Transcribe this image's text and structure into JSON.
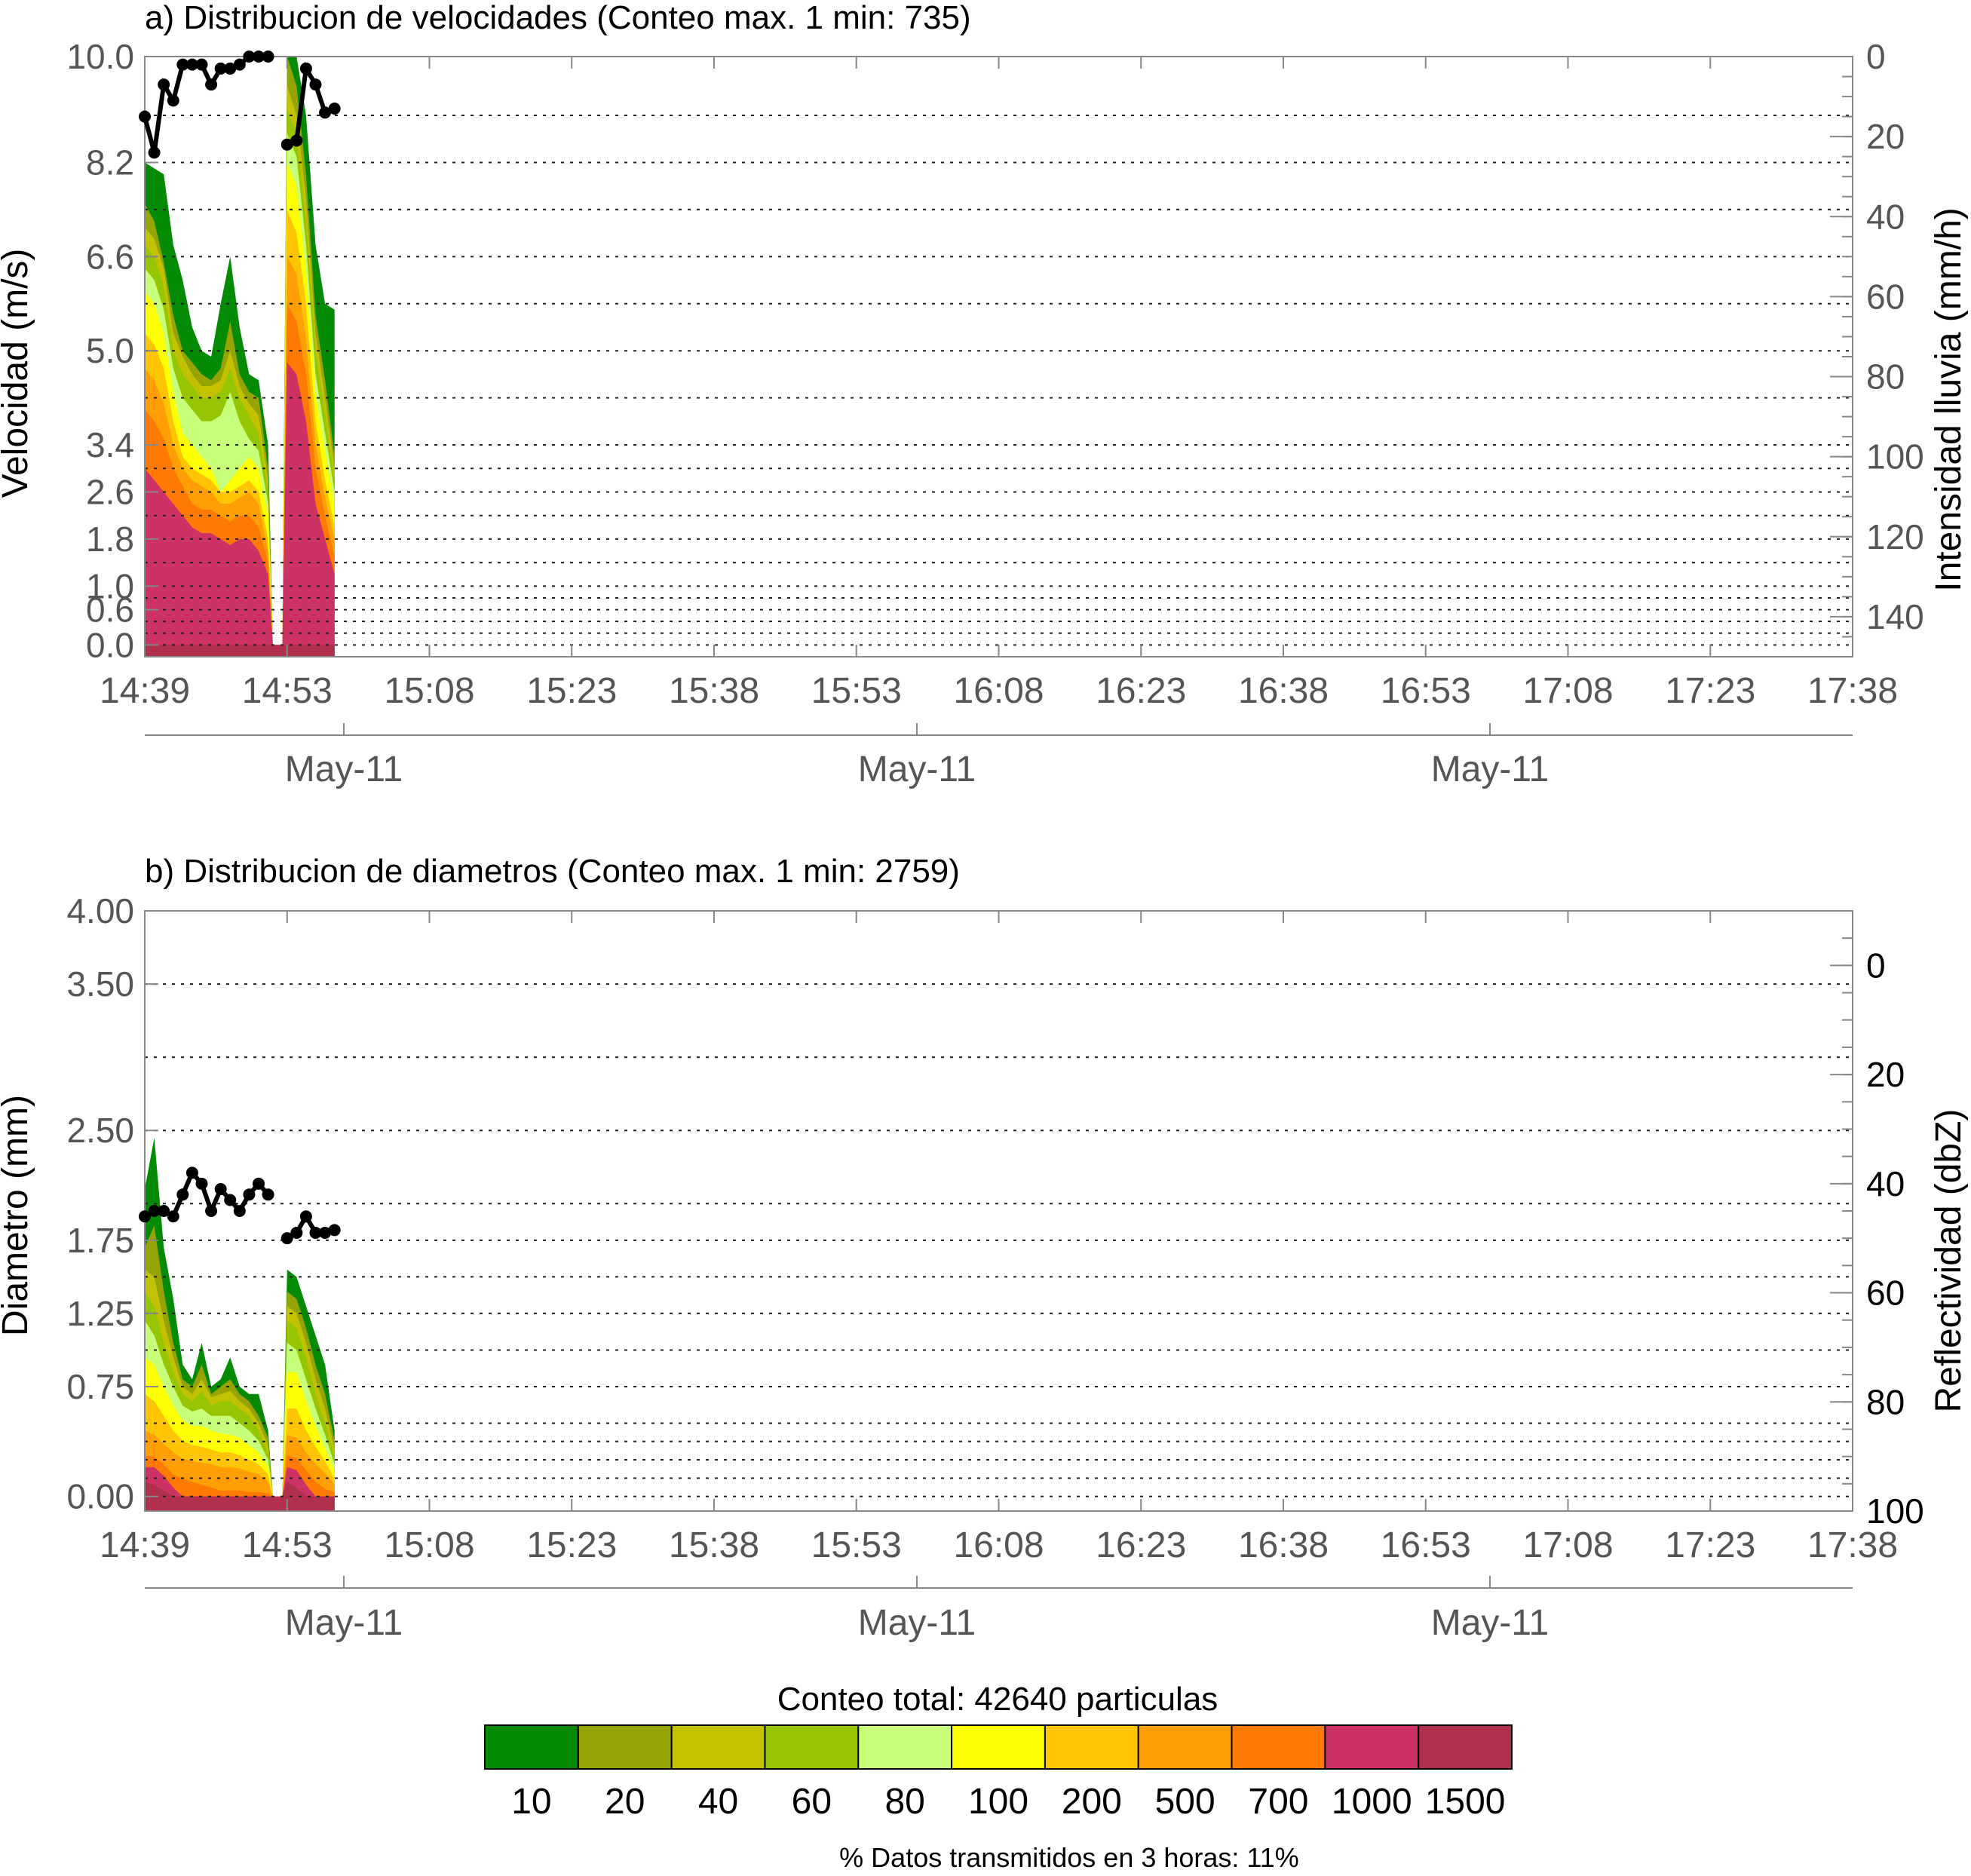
{
  "colors": {
    "axis_text": "#555555",
    "frame": "#888888",
    "grid": "#222222",
    "series": "#000000",
    "bins": [
      "#058a05",
      "#95a305",
      "#c2c203",
      "#96c603",
      "#c8ff7a",
      "#ffff03",
      "#ffc403",
      "#ff9f05",
      "#ff7a05",
      "#cd3264",
      "#b0304b"
    ]
  },
  "chart_data": [
    {
      "type": "area",
      "title": "a) Distribucion de velocidades (Conteo max. 1 min: 735)",
      "ylabel": "Velocidad (m/s)",
      "y2label": "Intensidad lluvia (mm/h)",
      "xticks": [
        "14:39",
        "14:53",
        "15:08",
        "15:23",
        "15:38",
        "15:53",
        "16:08",
        "16:23",
        "16:38",
        "16:53",
        "17:08",
        "17:23",
        "17:38"
      ],
      "date_labels": [
        "May-11",
        "May-11",
        "May-11"
      ],
      "xlim": [
        0,
        180
      ],
      "yticks": [
        "0.0",
        "0.6",
        "1.0",
        "1.8",
        "2.6",
        "3.4",
        "5.0",
        "6.6",
        "8.2",
        "10.0"
      ],
      "ytick_values": [
        0.0,
        0.6,
        1.0,
        1.8,
        2.6,
        3.4,
        5.0,
        6.6,
        8.2,
        10.0
      ],
      "gridlines": [
        0.0,
        0.2,
        0.4,
        0.6,
        0.8,
        1.0,
        1.4,
        1.8,
        2.2,
        2.6,
        3.0,
        3.4,
        4.2,
        5.0,
        5.8,
        6.6,
        7.4,
        8.2,
        9.0
      ],
      "ylim": [
        -0.2,
        10.0
      ],
      "y2ticks": [
        "0",
        "20",
        "40",
        "60",
        "80",
        "100",
        "120",
        "140"
      ],
      "y2tick_values": [
        0,
        20,
        40,
        60,
        80,
        100,
        120,
        140
      ],
      "y2lim": [
        0,
        150
      ],
      "y2_inverted": true,
      "series": [
        {
          "name": "",
          "kind": "rain_intensity",
          "x": [
            0,
            1,
            2,
            3,
            4,
            5,
            6,
            7,
            8,
            9,
            10,
            11,
            12,
            13,
            15,
            16,
            17,
            18,
            19,
            20
          ],
          "y": [
            15,
            24,
            7,
            11,
            2,
            2,
            2,
            7,
            3,
            3,
            2,
            0,
            0,
            0,
            22,
            21,
            3,
            7,
            14,
            13
          ]
        }
      ],
      "distribution": {
        "x": [
          0,
          1,
          2,
          3,
          4,
          5,
          6,
          7,
          8,
          9,
          10,
          11,
          12,
          13,
          13.5,
          14.5,
          15,
          16,
          17,
          18,
          19,
          20
        ],
        "upper_edge_by_level": [
          [
            8.2,
            8.1,
            8.0,
            6.8,
            6.2,
            5.4,
            5.0,
            4.9,
            5.8,
            6.6,
            5.4,
            4.6,
            4.5,
            3.4,
            0,
            0,
            10.0,
            10.0,
            9.0,
            6.8,
            5.8,
            5.7
          ],
          [
            7.5,
            7.2,
            6.5,
            5.6,
            5.0,
            4.8,
            4.6,
            4.5,
            4.7,
            5.5,
            4.6,
            4.3,
            4.2,
            3.0,
            0,
            0,
            10.0,
            9.5,
            8.0,
            5.6,
            4.5,
            3.2
          ],
          [
            7.1,
            6.9,
            6.4,
            5.3,
            4.9,
            4.6,
            4.4,
            4.4,
            4.5,
            5.0,
            4.4,
            4.1,
            3.9,
            2.8,
            0,
            0,
            9.5,
            9.0,
            7.6,
            5.3,
            4.2,
            3.0
          ],
          [
            6.8,
            6.6,
            6.1,
            5.0,
            4.6,
            4.4,
            4.2,
            4.2,
            4.3,
            4.7,
            4.2,
            3.9,
            3.6,
            2.6,
            0,
            0,
            9.1,
            8.7,
            7.2,
            5.0,
            3.9,
            2.8
          ],
          [
            6.4,
            6.2,
            5.7,
            4.7,
            4.2,
            4.0,
            3.8,
            3.8,
            3.9,
            4.3,
            3.8,
            3.5,
            3.3,
            2.4,
            0,
            0,
            8.7,
            8.3,
            6.8,
            4.6,
            3.6,
            2.6
          ],
          [
            6.0,
            5.8,
            5.3,
            4.3,
            3.6,
            3.4,
            3.2,
            3.0,
            2.6,
            2.8,
            3.0,
            3.2,
            3.0,
            2.2,
            0,
            0,
            8.2,
            7.8,
            6.4,
            4.3,
            3.3,
            2.4
          ],
          [
            5.3,
            5.1,
            4.7,
            3.8,
            3.2,
            3.0,
            2.9,
            2.8,
            2.6,
            2.6,
            2.7,
            2.8,
            2.6,
            1.8,
            0,
            0,
            7.4,
            7.0,
            5.8,
            3.8,
            2.8,
            2.0
          ],
          [
            4.7,
            4.5,
            4.1,
            3.4,
            3.0,
            2.8,
            2.7,
            2.6,
            2.4,
            2.4,
            2.5,
            2.6,
            2.4,
            1.6,
            0,
            0,
            6.6,
            6.3,
            5.2,
            3.4,
            2.5,
            1.8
          ],
          [
            4.0,
            3.8,
            3.5,
            3.0,
            2.7,
            2.4,
            2.3,
            2.3,
            2.2,
            2.1,
            2.2,
            2.2,
            2.0,
            1.4,
            0,
            0,
            5.8,
            5.5,
            4.6,
            3.0,
            2.2,
            1.5
          ],
          [
            3.0,
            2.8,
            2.6,
            2.4,
            2.2,
            2.0,
            1.9,
            1.9,
            1.8,
            1.7,
            1.8,
            1.8,
            1.6,
            1.2,
            0,
            0,
            4.8,
            4.6,
            3.8,
            2.4,
            1.8,
            1.2
          ],
          [
            0,
            0,
            0,
            0,
            0,
            0,
            0,
            0,
            0,
            0,
            0,
            0,
            0,
            0,
            0,
            0,
            0,
            0,
            0,
            0,
            0,
            0
          ]
        ]
      }
    },
    {
      "type": "area",
      "title": "b) Distribucion de diametros (Conteo max. 1 min: 2759)",
      "ylabel": "Diametro (mm)",
      "y2label": "Reflectividad (dbZ)",
      "xticks": [
        "14:39",
        "14:53",
        "15:08",
        "15:23",
        "15:38",
        "15:53",
        "16:08",
        "16:23",
        "16:38",
        "16:53",
        "17:08",
        "17:23",
        "17:38"
      ],
      "date_labels": [
        "May-11",
        "May-11",
        "May-11"
      ],
      "xlim": [
        0,
        180
      ],
      "yticks": [
        "0.00",
        "0.75",
        "1.25",
        "1.75",
        "2.50",
        "3.50",
        "4.00"
      ],
      "ytick_values": [
        0.0,
        0.75,
        1.25,
        1.75,
        2.5,
        3.5,
        4.0
      ],
      "gridlines": [
        0.0,
        0.125,
        0.25,
        0.375,
        0.5,
        0.75,
        1.0,
        1.25,
        1.5,
        1.75,
        2.0,
        2.5,
        3.0,
        3.5,
        4.0
      ],
      "ylim": [
        -0.1,
        4.0
      ],
      "y2ticks": [
        "0",
        "20",
        "40",
        "60",
        "80",
        "100"
      ],
      "y2tick_values": [
        0,
        20,
        40,
        60,
        80,
        100
      ],
      "y2lim": [
        -10,
        100
      ],
      "y2_inverted": true,
      "series": [
        {
          "name": "",
          "kind": "reflectivity",
          "x": [
            0,
            1,
            2,
            3,
            4,
            5,
            6,
            7,
            8,
            9,
            10,
            11,
            12,
            13,
            15,
            16,
            17,
            18,
            19,
            20
          ],
          "y": [
            46,
            45,
            45,
            46,
            42,
            38,
            40,
            45,
            41,
            43,
            45,
            42,
            40,
            42,
            50,
            49,
            46,
            49,
            49,
            48.5
          ]
        }
      ],
      "distribution": {
        "x": [
          0,
          1,
          2,
          3,
          4,
          5,
          6,
          7,
          8,
          9,
          10,
          11,
          12,
          13,
          13.5,
          14.5,
          15,
          16,
          17,
          18,
          19,
          20
        ],
        "upper_edge_by_level": [
          [
            2.1,
            2.45,
            1.7,
            1.35,
            0.9,
            0.8,
            1.05,
            0.75,
            0.8,
            0.95,
            0.75,
            0.7,
            0.7,
            0.45,
            0,
            0,
            1.55,
            1.5,
            1.3,
            1.1,
            0.9,
            0.45
          ],
          [
            1.7,
            1.85,
            1.4,
            1.05,
            0.8,
            0.75,
            0.9,
            0.7,
            0.75,
            0.8,
            0.7,
            0.65,
            0.55,
            0.4,
            0,
            0,
            1.4,
            1.35,
            1.15,
            0.9,
            0.7,
            0.38
          ],
          [
            1.55,
            1.5,
            1.2,
            0.95,
            0.75,
            0.7,
            0.8,
            0.68,
            0.7,
            0.72,
            0.65,
            0.6,
            0.5,
            0.35,
            0,
            0,
            1.3,
            1.25,
            1.05,
            0.8,
            0.6,
            0.32
          ],
          [
            1.4,
            1.3,
            1.05,
            0.85,
            0.7,
            0.65,
            0.72,
            0.62,
            0.65,
            0.65,
            0.6,
            0.55,
            0.45,
            0.3,
            0,
            0,
            1.2,
            1.15,
            0.95,
            0.7,
            0.5,
            0.28
          ],
          [
            1.2,
            1.1,
            0.9,
            0.75,
            0.62,
            0.58,
            0.6,
            0.55,
            0.55,
            0.55,
            0.5,
            0.45,
            0.38,
            0.25,
            0,
            0,
            1.05,
            1.0,
            0.8,
            0.6,
            0.42,
            0.22
          ],
          [
            0.95,
            0.9,
            0.75,
            0.62,
            0.52,
            0.48,
            0.48,
            0.45,
            0.43,
            0.42,
            0.4,
            0.35,
            0.3,
            0.2,
            0,
            0,
            0.85,
            0.85,
            0.65,
            0.48,
            0.33,
            0.18
          ],
          [
            0.7,
            0.65,
            0.55,
            0.45,
            0.38,
            0.35,
            0.34,
            0.32,
            0.3,
            0.3,
            0.28,
            0.25,
            0.22,
            0.15,
            0,
            0,
            0.6,
            0.6,
            0.45,
            0.34,
            0.24,
            0.12
          ],
          [
            0.45,
            0.42,
            0.36,
            0.3,
            0.26,
            0.24,
            0.23,
            0.22,
            0.2,
            0.2,
            0.19,
            0.17,
            0.15,
            0.1,
            0,
            0,
            0.42,
            0.4,
            0.3,
            0.22,
            0.16,
            0.08
          ],
          [
            0.28,
            0.27,
            0.22,
            0.15,
            0.12,
            0.1,
            0.08,
            0.06,
            0.04,
            0.04,
            0.04,
            0.03,
            0.03,
            0.02,
            0,
            0,
            0.28,
            0.26,
            0.18,
            0.1,
            0.05,
            0.03
          ],
          [
            0.2,
            0.2,
            0.14,
            0.06,
            0,
            0,
            0,
            0,
            0,
            0,
            0,
            0,
            0,
            0,
            0,
            0,
            0.2,
            0.18,
            0.08,
            0,
            0,
            0
          ],
          [
            0.1,
            0.08,
            0.04,
            0,
            0,
            0,
            0,
            0,
            0,
            0,
            0,
            0,
            0,
            0,
            0,
            0,
            0.1,
            0.06,
            0,
            0,
            0,
            0
          ]
        ]
      }
    }
  ],
  "colorbar": {
    "title": "Conteo total: 42640 particulas",
    "labels": [
      "10",
      "20",
      "40",
      "60",
      "80",
      "100",
      "200",
      "500",
      "700",
      "1000",
      "1500"
    ]
  },
  "footer": "% Datos transmitidos en 3 horas: 11%"
}
